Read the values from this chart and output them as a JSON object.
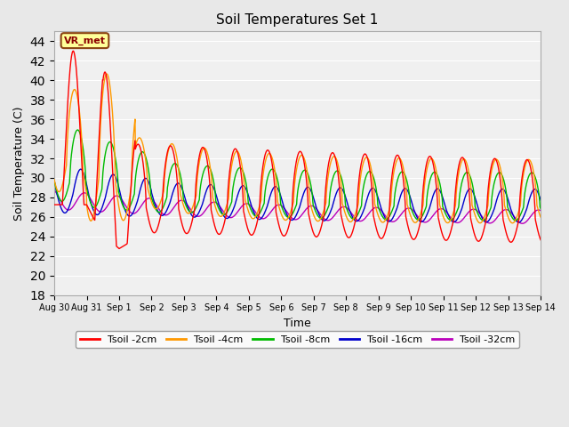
{
  "title": "Soil Temperatures Set 1",
  "xlabel": "Time",
  "ylabel": "Soil Temperature (C)",
  "ylim": [
    18,
    45
  ],
  "yticks": [
    18,
    20,
    22,
    24,
    26,
    28,
    30,
    32,
    34,
    36,
    38,
    40,
    42,
    44
  ],
  "fig_bg": "#e8e8e8",
  "plot_bg": "#f0f0f0",
  "grid_color": "#ffffff",
  "series_colors": [
    "#ff0000",
    "#ff9900",
    "#00bb00",
    "#0000cc",
    "#bb00bb"
  ],
  "series_labels": [
    "Tsoil -2cm",
    "Tsoil -4cm",
    "Tsoil -8cm",
    "Tsoil -16cm",
    "Tsoil -32cm"
  ],
  "annotation_text": "VR_met",
  "tick_labels": [
    "Aug 30",
    "Aug 31",
    "Sep 1",
    "Sep 2",
    "Sep 3",
    "Sep 4",
    "Sep 5",
    "Sep 6",
    "Sep 7",
    "Sep 8",
    "Sep 9",
    "Sep 10",
    "Sep 11",
    "Sep 12",
    "Sep 13",
    "Sep 14"
  ]
}
